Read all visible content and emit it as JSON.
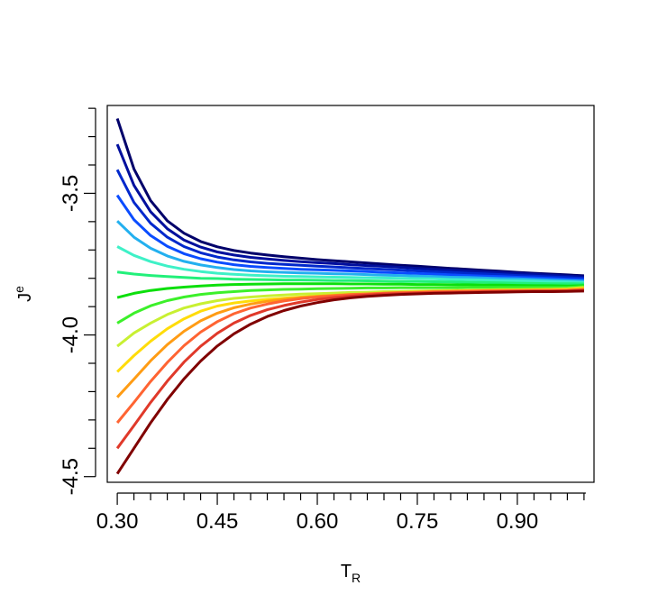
{
  "chart_data": {
    "type": "line",
    "xlabel": "T",
    "xlabel_sub": "R",
    "ylabel": "J",
    "ylabel_sup": "e",
    "xlim": [
      0.285,
      1.015
    ],
    "ylim": [
      -4.52,
      -3.19
    ],
    "x_ticks": [
      0.3,
      0.45,
      0.6,
      0.75,
      0.9
    ],
    "x_tick_labels": [
      "0.30",
      "0.45",
      "0.60",
      "0.75",
      "0.90"
    ],
    "x_minor_step": 0.025,
    "y_ticks": [
      -4.5,
      -4.0,
      -3.5
    ],
    "y_tick_labels": [
      "-4.5",
      "-4.0",
      "-3.5"
    ],
    "y_minor_step": 0.1,
    "grid": false,
    "legend": "none",
    "x": [
      0.3,
      0.325,
      0.35,
      0.375,
      0.4,
      0.425,
      0.45,
      0.475,
      0.5,
      0.525,
      0.55,
      0.575,
      0.6,
      0.625,
      0.65,
      0.675,
      0.7,
      0.725,
      0.75,
      0.775,
      0.8,
      0.825,
      0.85,
      0.875,
      0.9,
      0.925,
      0.95,
      0.975,
      1.0
    ],
    "series": [
      {
        "color": "#00006a",
        "values": [
          -3.236,
          -3.414,
          -3.526,
          -3.597,
          -3.641,
          -3.67,
          -3.689,
          -3.702,
          -3.711,
          -3.718,
          -3.724,
          -3.729,
          -3.734,
          -3.738,
          -3.742,
          -3.746,
          -3.75,
          -3.754,
          -3.757,
          -3.761,
          -3.765,
          -3.768,
          -3.772,
          -3.775,
          -3.779,
          -3.782,
          -3.785,
          -3.788,
          -3.791
        ]
      },
      {
        "color": "#000f9d",
        "values": [
          -3.327,
          -3.472,
          -3.565,
          -3.625,
          -3.665,
          -3.69,
          -3.707,
          -3.718,
          -3.726,
          -3.732,
          -3.737,
          -3.741,
          -3.745,
          -3.748,
          -3.752,
          -3.755,
          -3.758,
          -3.761,
          -3.765,
          -3.768,
          -3.771,
          -3.774,
          -3.777,
          -3.78,
          -3.783,
          -3.786,
          -3.789,
          -3.792,
          -3.795
        ]
      },
      {
        "color": "#0028cc",
        "values": [
          -3.417,
          -3.532,
          -3.606,
          -3.655,
          -3.688,
          -3.71,
          -3.725,
          -3.735,
          -3.742,
          -3.747,
          -3.751,
          -3.754,
          -3.757,
          -3.76,
          -3.763,
          -3.766,
          -3.768,
          -3.771,
          -3.774,
          -3.777,
          -3.779,
          -3.782,
          -3.784,
          -3.787,
          -3.79,
          -3.792,
          -3.795,
          -3.797,
          -3.8
        ]
      },
      {
        "color": "#0a4cff",
        "values": [
          -3.507,
          -3.593,
          -3.649,
          -3.687,
          -3.713,
          -3.731,
          -3.743,
          -3.752,
          -3.758,
          -3.762,
          -3.765,
          -3.768,
          -3.77,
          -3.772,
          -3.774,
          -3.776,
          -3.779,
          -3.781,
          -3.783,
          -3.785,
          -3.788,
          -3.79,
          -3.792,
          -3.794,
          -3.796,
          -3.798,
          -3.8,
          -3.803,
          -3.805
        ]
      },
      {
        "color": "#23b0ef",
        "values": [
          -3.598,
          -3.655,
          -3.694,
          -3.721,
          -3.74,
          -3.753,
          -3.762,
          -3.769,
          -3.774,
          -3.777,
          -3.779,
          -3.781,
          -3.782,
          -3.784,
          -3.785,
          -3.787,
          -3.789,
          -3.79,
          -3.792,
          -3.794,
          -3.796,
          -3.797,
          -3.799,
          -3.801,
          -3.802,
          -3.804,
          -3.806,
          -3.808,
          -3.81
        ]
      },
      {
        "color": "#3ef1c7",
        "values": [
          -3.688,
          -3.719,
          -3.741,
          -3.757,
          -3.768,
          -3.776,
          -3.782,
          -3.786,
          -3.789,
          -3.791,
          -3.793,
          -3.794,
          -3.795,
          -3.796,
          -3.797,
          -3.798,
          -3.799,
          -3.8,
          -3.801,
          -3.802,
          -3.804,
          -3.805,
          -3.806,
          -3.808,
          -3.809,
          -3.81,
          -3.812,
          -3.813,
          -3.815
        ]
      },
      {
        "color": "#22f07a",
        "values": [
          -3.778,
          -3.785,
          -3.79,
          -3.794,
          -3.797,
          -3.8,
          -3.801,
          -3.803,
          -3.804,
          -3.805,
          -3.806,
          -3.806,
          -3.807,
          -3.808,
          -3.808,
          -3.809,
          -3.81,
          -3.811,
          -3.811,
          -3.812,
          -3.813,
          -3.814,
          -3.815,
          -3.816,
          -3.817,
          -3.818,
          -3.819,
          -3.819,
          -3.82
        ]
      },
      {
        "color": "#0cdf0c",
        "values": [
          -3.868,
          -3.853,
          -3.843,
          -3.836,
          -3.831,
          -3.827,
          -3.824,
          -3.822,
          -3.821,
          -3.82,
          -3.819,
          -3.819,
          -3.819,
          -3.819,
          -3.82,
          -3.82,
          -3.821,
          -3.821,
          -3.822,
          -3.822,
          -3.823,
          -3.823,
          -3.824,
          -3.824,
          -3.825,
          -3.826,
          -3.826,
          -3.827,
          -3.826
        ]
      },
      {
        "color": "#3cf02a",
        "values": [
          -3.958,
          -3.923,
          -3.897,
          -3.879,
          -3.866,
          -3.857,
          -3.851,
          -3.847,
          -3.843,
          -3.841,
          -3.839,
          -3.838,
          -3.837,
          -3.836,
          -3.835,
          -3.834,
          -3.834,
          -3.833,
          -3.833,
          -3.833,
          -3.833,
          -3.832,
          -3.832,
          -3.832,
          -3.832,
          -3.832,
          -3.832,
          -3.832,
          -3.829
        ]
      },
      {
        "color": "#c8f032",
        "values": [
          -4.04,
          -3.993,
          -3.958,
          -3.928,
          -3.905,
          -3.89,
          -3.879,
          -3.871,
          -3.866,
          -3.862,
          -3.859,
          -3.856,
          -3.854,
          -3.852,
          -3.85,
          -3.849,
          -3.847,
          -3.846,
          -3.845,
          -3.844,
          -3.843,
          -3.842,
          -3.841,
          -3.84,
          -3.84,
          -3.839,
          -3.838,
          -3.837,
          -3.832
        ]
      },
      {
        "color": "#ffdc0a",
        "values": [
          -4.13,
          -4.073,
          -4.022,
          -3.978,
          -3.943,
          -3.916,
          -3.898,
          -3.887,
          -3.88,
          -3.874,
          -3.87,
          -3.866,
          -3.863,
          -3.86,
          -3.857,
          -3.855,
          -3.852,
          -3.85,
          -3.848,
          -3.846,
          -3.845,
          -3.844,
          -3.843,
          -3.842,
          -3.841,
          -3.84,
          -3.84,
          -3.839,
          -3.835
        ]
      },
      {
        "color": "#ff9c14",
        "values": [
          -4.22,
          -4.156,
          -4.091,
          -4.034,
          -3.987,
          -3.95,
          -3.923,
          -3.904,
          -3.891,
          -3.881,
          -3.874,
          -3.868,
          -3.864,
          -3.86,
          -3.857,
          -3.855,
          -3.852,
          -3.85,
          -3.849,
          -3.847,
          -3.846,
          -3.845,
          -3.844,
          -3.843,
          -3.843,
          -3.842,
          -3.842,
          -3.841,
          -3.838
        ]
      },
      {
        "color": "#ff6432",
        "values": [
          -4.31,
          -4.238,
          -4.164,
          -4.097,
          -4.038,
          -3.99,
          -3.953,
          -3.925,
          -3.905,
          -3.891,
          -3.88,
          -3.872,
          -3.866,
          -3.862,
          -3.858,
          -3.856,
          -3.853,
          -3.851,
          -3.85,
          -3.848,
          -3.847,
          -3.846,
          -3.845,
          -3.845,
          -3.844,
          -3.844,
          -3.843,
          -3.843,
          -3.84
        ]
      },
      {
        "color": "#e0392a",
        "values": [
          -4.4,
          -4.32,
          -4.238,
          -4.163,
          -4.096,
          -4.04,
          -3.994,
          -3.958,
          -3.931,
          -3.911,
          -3.896,
          -3.884,
          -3.875,
          -3.868,
          -3.863,
          -3.859,
          -3.856,
          -3.854,
          -3.852,
          -3.851,
          -3.85,
          -3.849,
          -3.848,
          -3.847,
          -3.847,
          -3.846,
          -3.846,
          -3.845,
          -3.843
        ]
      },
      {
        "color": "#800000",
        "values": [
          -4.49,
          -4.4,
          -4.31,
          -4.228,
          -4.155,
          -4.092,
          -4.039,
          -3.996,
          -3.962,
          -3.935,
          -3.914,
          -3.898,
          -3.886,
          -3.876,
          -3.869,
          -3.864,
          -3.86,
          -3.857,
          -3.855,
          -3.853,
          -3.852,
          -3.851,
          -3.85,
          -3.849,
          -3.848,
          -3.847,
          -3.847,
          -3.846,
          -3.845
        ]
      }
    ]
  }
}
